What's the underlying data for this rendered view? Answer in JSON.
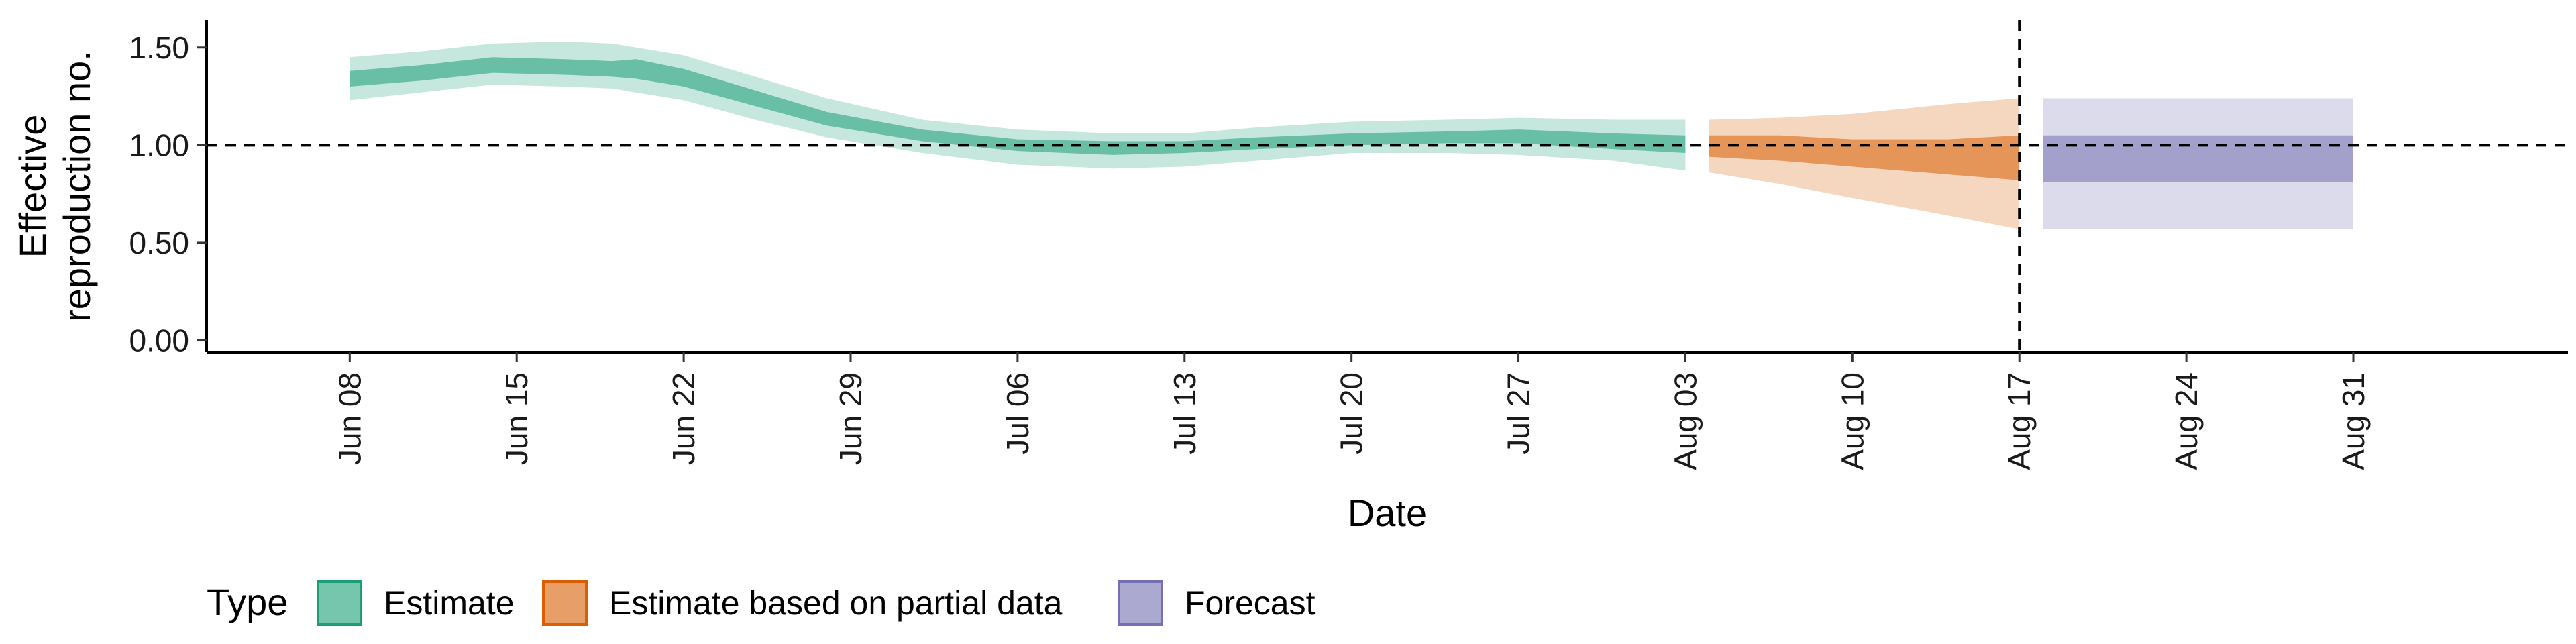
{
  "chart_data": {
    "type": "area",
    "xlabel": "Date",
    "ylabel": "Effective reproduction no.",
    "ylabel_lines": [
      "Effective",
      "reproduction no."
    ],
    "xlim": [
      "2020-06-02",
      "2020-09-09"
    ],
    "ylim": [
      -0.06,
      1.64
    ],
    "x_ticks": [
      "2020-06-08",
      "2020-06-15",
      "2020-06-22",
      "2020-06-29",
      "2020-07-06",
      "2020-07-13",
      "2020-07-20",
      "2020-07-27",
      "2020-08-03",
      "2020-08-10",
      "2020-08-17",
      "2020-08-24",
      "2020-08-31"
    ],
    "x_tick_labels": [
      "Jun 08",
      "Jun 15",
      "Jun 22",
      "Jun 29",
      "Jul 06",
      "Jul 13",
      "Jul 20",
      "Jul 27",
      "Aug 03",
      "Aug 10",
      "Aug 17",
      "Aug 24",
      "Aug 31"
    ],
    "y_ticks": [
      0,
      0.5,
      1.0,
      1.5
    ],
    "y_tick_labels": [
      "0.00",
      "0.50",
      "1.00",
      "1.50"
    ],
    "grid": false,
    "reference_lines": [
      {
        "orientation": "horizontal",
        "value": 1.0,
        "style": "dashed"
      },
      {
        "orientation": "vertical",
        "value": "2020-08-17",
        "style": "dashed"
      }
    ],
    "legend": {
      "title": "Type",
      "position": "bottom-left",
      "items": [
        {
          "label": "Estimate",
          "color": "#1b9e77"
        },
        {
          "label": "Estimate based on partial data",
          "color": "#d95f02"
        },
        {
          "label": "Forecast",
          "color": "#7570b3"
        }
      ]
    },
    "series": [
      {
        "name": "Estimate",
        "color": "#1b9e77",
        "points": [
          {
            "x": "2020-06-08",
            "lo90": 1.23,
            "lo50": 1.3,
            "hi50": 1.38,
            "hi90": 1.45
          },
          {
            "x": "2020-06-11",
            "lo90": 1.27,
            "lo50": 1.33,
            "hi50": 1.41,
            "hi90": 1.48
          },
          {
            "x": "2020-06-14",
            "lo90": 1.31,
            "lo50": 1.37,
            "hi50": 1.45,
            "hi90": 1.52
          },
          {
            "x": "2020-06-17",
            "lo90": 1.3,
            "lo50": 1.36,
            "hi50": 1.44,
            "hi90": 1.53
          },
          {
            "x": "2020-06-19",
            "lo90": 1.29,
            "lo50": 1.35,
            "hi50": 1.43,
            "hi90": 1.52
          },
          {
            "x": "2020-06-20",
            "lo90": 1.27,
            "lo50": 1.34,
            "hi50": 1.44,
            "hi90": 1.5
          },
          {
            "x": "2020-06-22",
            "lo90": 1.23,
            "lo50": 1.3,
            "hi50": 1.39,
            "hi90": 1.46
          },
          {
            "x": "2020-06-25",
            "lo90": 1.13,
            "lo50": 1.2,
            "hi50": 1.28,
            "hi90": 1.35
          },
          {
            "x": "2020-06-28",
            "lo90": 1.04,
            "lo50": 1.1,
            "hi50": 1.17,
            "hi90": 1.24
          },
          {
            "x": "2020-07-02",
            "lo90": 0.96,
            "lo50": 1.02,
            "hi50": 1.08,
            "hi90": 1.13
          },
          {
            "x": "2020-07-06",
            "lo90": 0.9,
            "lo50": 0.97,
            "hi50": 1.03,
            "hi90": 1.08
          },
          {
            "x": "2020-07-10",
            "lo90": 0.88,
            "lo50": 0.95,
            "hi50": 1.02,
            "hi90": 1.06
          },
          {
            "x": "2020-07-13",
            "lo90": 0.89,
            "lo50": 0.96,
            "hi50": 1.02,
            "hi90": 1.06
          },
          {
            "x": "2020-07-16",
            "lo90": 0.92,
            "lo50": 0.98,
            "hi50": 1.04,
            "hi90": 1.09
          },
          {
            "x": "2020-07-20",
            "lo90": 0.96,
            "lo50": 1.0,
            "hi50": 1.06,
            "hi90": 1.12
          },
          {
            "x": "2020-07-24",
            "lo90": 0.96,
            "lo50": 1.01,
            "hi50": 1.07,
            "hi90": 1.13
          },
          {
            "x": "2020-07-27",
            "lo90": 0.95,
            "lo50": 1.01,
            "hi50": 1.08,
            "hi90": 1.14
          },
          {
            "x": "2020-07-31",
            "lo90": 0.92,
            "lo50": 0.98,
            "hi50": 1.06,
            "hi90": 1.13
          },
          {
            "x": "2020-08-03",
            "lo90": 0.87,
            "lo50": 0.96,
            "hi50": 1.05,
            "hi90": 1.13
          }
        ]
      },
      {
        "name": "Estimate based on partial data",
        "color": "#d95f02",
        "points": [
          {
            "x": "2020-08-04",
            "lo90": 0.86,
            "lo50": 0.94,
            "hi50": 1.05,
            "hi90": 1.13
          },
          {
            "x": "2020-08-07",
            "lo90": 0.8,
            "lo50": 0.92,
            "hi50": 1.05,
            "hi90": 1.14
          },
          {
            "x": "2020-08-10",
            "lo90": 0.73,
            "lo50": 0.89,
            "hi50": 1.03,
            "hi90": 1.16
          },
          {
            "x": "2020-08-14",
            "lo90": 0.64,
            "lo50": 0.85,
            "hi50": 1.03,
            "hi90": 1.21
          },
          {
            "x": "2020-08-17",
            "lo90": 0.57,
            "lo50": 0.82,
            "hi50": 1.05,
            "hi90": 1.24
          }
        ]
      },
      {
        "name": "Forecast",
        "color": "#7570b3",
        "points": [
          {
            "x": "2020-08-18",
            "lo90": 0.57,
            "lo50": 0.81,
            "hi50": 1.05,
            "hi90": 1.24
          },
          {
            "x": "2020-08-31",
            "lo90": 0.57,
            "lo50": 0.81,
            "hi50": 1.05,
            "hi90": 1.24
          }
        ]
      }
    ]
  }
}
